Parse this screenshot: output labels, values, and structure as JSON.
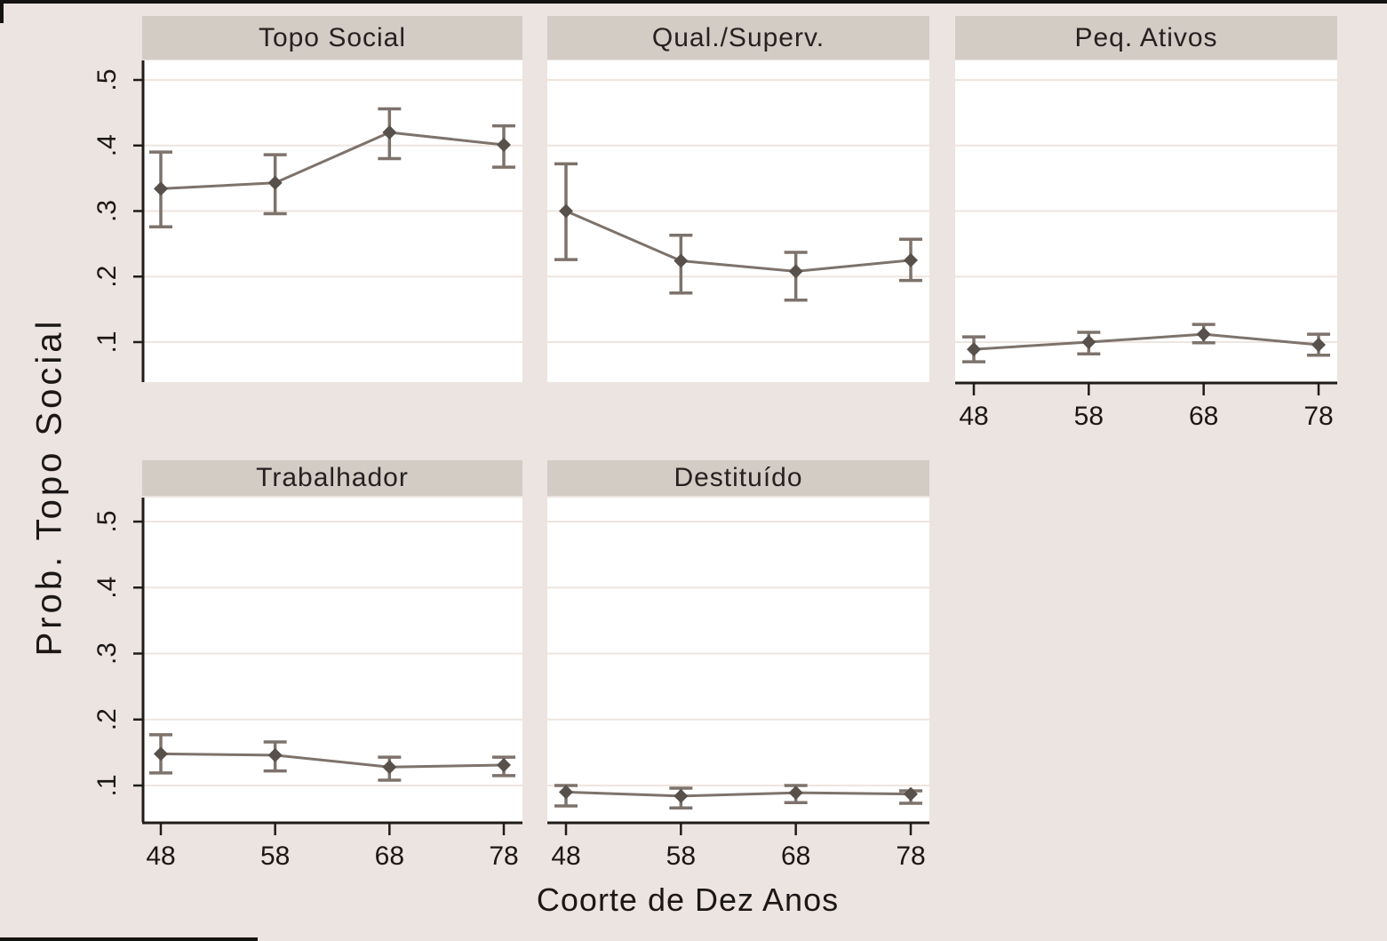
{
  "figure": {
    "background": "#ece4e1",
    "panel_background": "#ffffff",
    "header_background": "#d2ccc5",
    "header_text_color": "#262120",
    "grid_color": "#efe5df",
    "axis_color": "#1f1c1a",
    "tick_text_color": "#1a1716",
    "line_color": "#7d736c",
    "marker_color": "#57504b"
  },
  "chart_data": {
    "type": "line",
    "title": "",
    "xlabel": "Coorte de Dez Anos",
    "ylabel": "Prob. Topo Social",
    "x": [
      48,
      58,
      68,
      78
    ],
    "x_tick_labels": [
      "48",
      "58",
      "68",
      "78"
    ],
    "yticks": [
      ".1",
      ".2",
      ".3",
      ".4",
      ".5"
    ],
    "ytick_values": [
      0.1,
      0.2,
      0.3,
      0.4,
      0.5
    ],
    "ylim": [
      0.04,
      0.53
    ],
    "grid": true,
    "error_bars": true,
    "legend": "none",
    "panels": [
      {
        "label": "Topo Social",
        "row": 0,
        "col": 0,
        "values": [
          0.334,
          0.343,
          0.42,
          0.401
        ],
        "ci_low": [
          0.276,
          0.296,
          0.38,
          0.367
        ],
        "ci_high": [
          0.39,
          0.386,
          0.456,
          0.43
        ],
        "show_y_axis": true,
        "show_x_axis": false,
        "show_x_labels": false
      },
      {
        "label": "Qual./Superv.",
        "row": 0,
        "col": 1,
        "values": [
          0.3,
          0.224,
          0.208,
          0.225
        ],
        "ci_low": [
          0.226,
          0.175,
          0.164,
          0.194
        ],
        "ci_high": [
          0.372,
          0.263,
          0.237,
          0.257
        ],
        "show_y_axis": false,
        "show_x_axis": false,
        "show_x_labels": false
      },
      {
        "label": "Peq. Ativos",
        "row": 0,
        "col": 2,
        "values": [
          0.089,
          0.1,
          0.112,
          0.096
        ],
        "ci_low": [
          0.07,
          0.082,
          0.099,
          0.08
        ],
        "ci_high": [
          0.108,
          0.115,
          0.127,
          0.112
        ],
        "show_y_axis": false,
        "show_x_axis": true,
        "show_x_labels": true
      },
      {
        "label": "Trabalhador",
        "row": 1,
        "col": 0,
        "values": [
          0.148,
          0.146,
          0.128,
          0.131
        ],
        "ci_low": [
          0.119,
          0.122,
          0.108,
          0.115
        ],
        "ci_high": [
          0.177,
          0.166,
          0.143,
          0.143
        ],
        "show_y_axis": true,
        "show_x_axis": true,
        "show_x_labels": true
      },
      {
        "label": "Destituído",
        "row": 1,
        "col": 1,
        "values": [
          0.09,
          0.084,
          0.089,
          0.087
        ],
        "ci_low": [
          0.069,
          0.066,
          0.074,
          0.073
        ],
        "ci_high": [
          0.1,
          0.096,
          0.1,
          0.092
        ],
        "show_y_axis": false,
        "show_x_axis": true,
        "show_x_labels": true
      }
    ]
  }
}
